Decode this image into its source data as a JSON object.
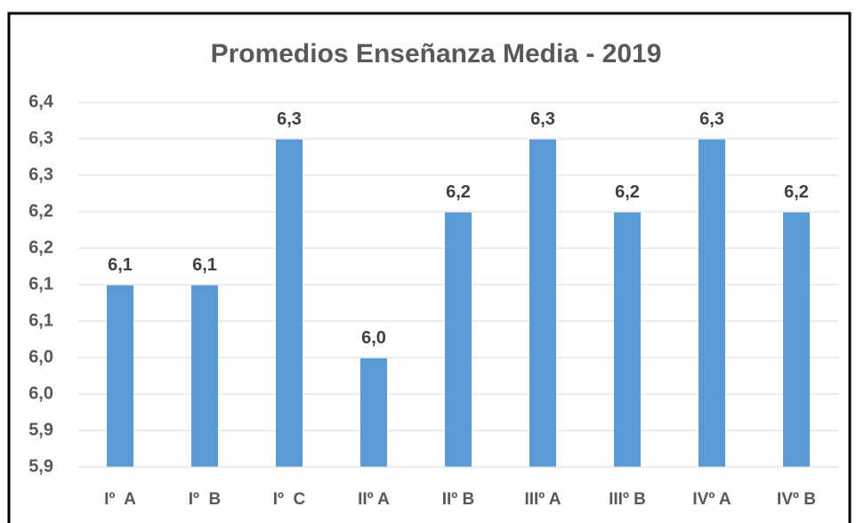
{
  "chart_data": {
    "type": "bar",
    "title": "Promedios Enseñanza Media - 2019",
    "categories": [
      "Iº  A",
      "Iº  B",
      "Iº  C",
      "IIº A",
      "IIº B",
      "IIIº A",
      "IIIº B",
      "IVº A",
      "IVº B"
    ],
    "values": [
      6.149,
      6.149,
      6.349,
      6.049,
      6.249,
      6.349,
      6.249,
      6.349,
      6.249
    ],
    "value_labels": [
      "6,1",
      "6,1",
      "6,3",
      "6,0",
      "6,2",
      "6,3",
      "6,2",
      "6,3",
      "6,2"
    ],
    "color": "#5b9bd5",
    "ylim": [
      5.9,
      6.4
    ],
    "yticks": [
      {
        "value": 5.9,
        "label": "5,9"
      },
      {
        "value": 5.95,
        "label": "5,9"
      },
      {
        "value": 6.0,
        "label": "6,0"
      },
      {
        "value": 6.05,
        "label": "6,0"
      },
      {
        "value": 6.1,
        "label": "6,1"
      },
      {
        "value": 6.15,
        "label": "6,1"
      },
      {
        "value": 6.2,
        "label": "6,2"
      },
      {
        "value": 6.25,
        "label": "6,2"
      },
      {
        "value": 6.3,
        "label": "6,3"
      },
      {
        "value": 6.35,
        "label": "6,3"
      },
      {
        "value": 6.4,
        "label": "6,4"
      }
    ],
    "grid": true
  }
}
